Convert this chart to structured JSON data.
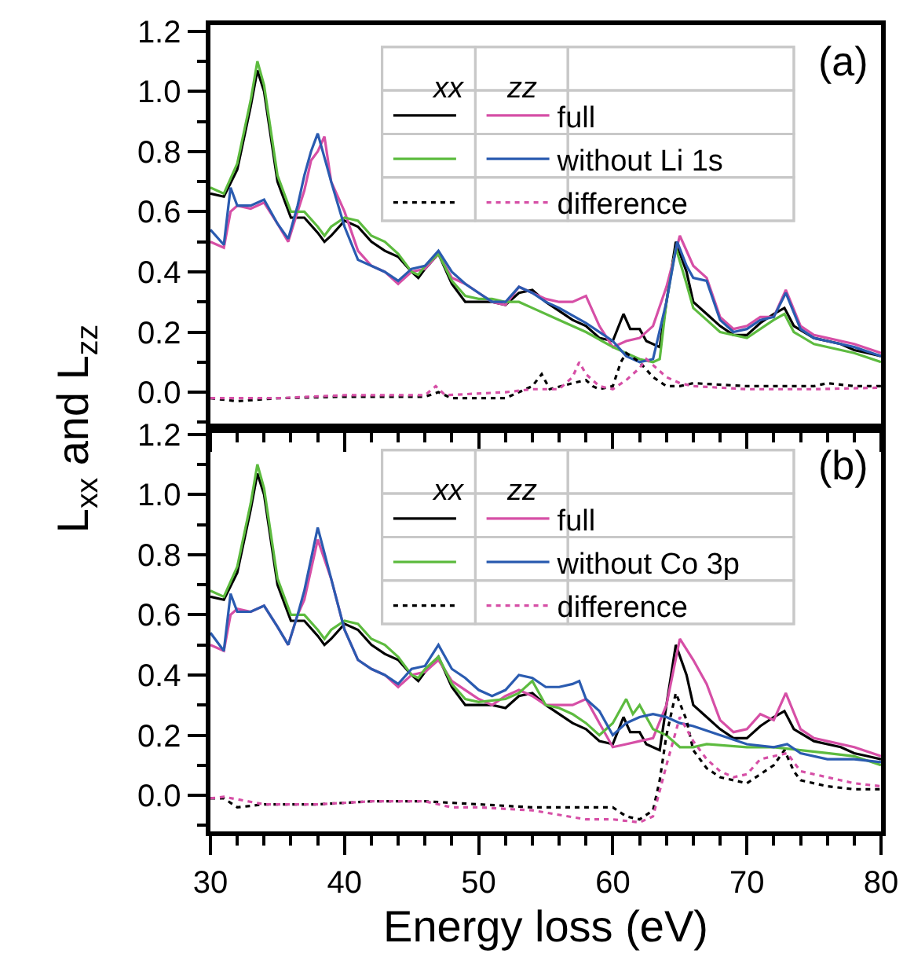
{
  "chart_data": [
    {
      "type": "line",
      "title": "(a)",
      "ylabel": "L$_{xx}$ and L$_{zz}$",
      "tick_labels": "y",
      "legend": "top right",
      "grid": false,
      "marker": "none",
      "annotations": [
        "xx",
        "zz"
      ],
      "xlim": [
        30,
        80
      ],
      "xticks": [
        30,
        40,
        50,
        60,
        70,
        80,
        {
          "value": 32,
          "label": null
        },
        {
          "value": 34,
          "label": null
        },
        {
          "value": 36,
          "label": null
        },
        {
          "value": 38,
          "label": null
        },
        {
          "value": 42,
          "label": null
        },
        {
          "value": 44,
          "label": null
        },
        {
          "value": 46,
          "label": null
        },
        {
          "value": 48,
          "label": null
        },
        {
          "value": 52,
          "label": null
        },
        {
          "value": 54,
          "label": null
        },
        {
          "value": 56,
          "label": null
        },
        {
          "value": 58,
          "label": null
        },
        {
          "value": 62,
          "label": null
        },
        {
          "value": 64,
          "label": null
        },
        {
          "value": 66,
          "label": null
        },
        {
          "value": 68,
          "label": null
        },
        {
          "value": 72,
          "label": null
        },
        {
          "value": 74,
          "label": null
        },
        {
          "value": 76,
          "label": null
        },
        {
          "value": 78,
          "label": null
        }
      ],
      "ylim": [
        -0.12,
        1.22
      ],
      "yticks": [
        {
          "value": 0,
          "label": "0.0"
        },
        0.2,
        0.4,
        0.6,
        0.8,
        {
          "value": 1,
          "label": "1.0"
        },
        1.2,
        {
          "value": -0.1,
          "label": null
        },
        {
          "value": 0.1,
          "label": null
        },
        {
          "value": 0.3,
          "label": null
        },
        {
          "value": 0.5,
          "label": null
        },
        {
          "value": 0.7,
          "label": null
        },
        {
          "value": 0.9,
          "label": null
        },
        {
          "value": 1.1,
          "label": null
        }
      ],
      "series": [
        {
          "color": "#000000",
          "line_style": "solid",
          "x": [
            30,
            31,
            32,
            33,
            33.5,
            34,
            35,
            36,
            37,
            38,
            38.5,
            39,
            40,
            41,
            42,
            43,
            44,
            45,
            45.5,
            46,
            47,
            48,
            49,
            50,
            51,
            52,
            53,
            54,
            55,
            56,
            57,
            58,
            59,
            60,
            60.8,
            61.3,
            62,
            62.5,
            63.5,
            64,
            64.7,
            65.5,
            66,
            67,
            68,
            69,
            70,
            71,
            72,
            72.8,
            73.5,
            75,
            76,
            77,
            78,
            79,
            80
          ],
          "values": [
            0.66,
            0.65,
            0.74,
            0.95,
            1.07,
            1.0,
            0.7,
            0.58,
            0.58,
            0.53,
            0.5,
            0.52,
            0.57,
            0.55,
            0.5,
            0.47,
            0.45,
            0.4,
            0.38,
            0.41,
            0.46,
            0.36,
            0.3,
            0.3,
            0.3,
            0.29,
            0.33,
            0.34,
            0.3,
            0.27,
            0.24,
            0.22,
            0.18,
            0.17,
            0.26,
            0.21,
            0.21,
            0.17,
            0.15,
            0.3,
            0.5,
            0.4,
            0.3,
            0.26,
            0.22,
            0.19,
            0.19,
            0.23,
            0.26,
            0.28,
            0.22,
            0.18,
            0.17,
            0.16,
            0.14,
            0.13,
            0.12
          ]
        },
        {
          "name": "full",
          "color": "#d64fa6",
          "line_style": "solid",
          "x": [
            30,
            31,
            31.5,
            32,
            33,
            34,
            35,
            35.8,
            36.5,
            37,
            37.5,
            38,
            38.5,
            39,
            40,
            41,
            42,
            43,
            44,
            45,
            46,
            47,
            48,
            49,
            50,
            51,
            52,
            53,
            54,
            55,
            56,
            57,
            58,
            59,
            60,
            61,
            62,
            63,
            64,
            65,
            66,
            67,
            68,
            69,
            70,
            71,
            72,
            72.9,
            74,
            75,
            76,
            78,
            80
          ],
          "values": [
            0.5,
            0.48,
            0.6,
            0.62,
            0.61,
            0.63,
            0.56,
            0.5,
            0.6,
            0.67,
            0.77,
            0.8,
            0.85,
            0.7,
            0.6,
            0.47,
            0.42,
            0.4,
            0.36,
            0.4,
            0.41,
            0.46,
            0.38,
            0.36,
            0.33,
            0.3,
            0.29,
            0.35,
            0.33,
            0.31,
            0.3,
            0.3,
            0.32,
            0.22,
            0.15,
            0.17,
            0.18,
            0.22,
            0.35,
            0.52,
            0.42,
            0.38,
            0.25,
            0.21,
            0.22,
            0.25,
            0.25,
            0.34,
            0.22,
            0.19,
            0.18,
            0.16,
            0.13
          ]
        },
        {
          "color": "#5dbb3f",
          "line_style": "solid",
          "x": [
            30,
            31,
            32,
            33,
            33.5,
            34,
            35,
            36,
            37,
            38,
            38.5,
            39,
            40,
            41,
            42,
            43,
            44,
            45,
            45.5,
            46,
            47,
            48,
            49,
            50,
            51,
            52,
            53,
            54,
            56,
            58,
            60,
            62,
            63,
            63.5,
            64,
            64.7,
            65.5,
            66,
            67,
            68,
            70,
            72,
            72.8,
            73.5,
            75,
            78,
            80
          ],
          "values": [
            0.68,
            0.66,
            0.76,
            0.97,
            1.1,
            1.02,
            0.72,
            0.6,
            0.6,
            0.55,
            0.52,
            0.55,
            0.58,
            0.57,
            0.52,
            0.5,
            0.46,
            0.4,
            0.39,
            0.42,
            0.46,
            0.37,
            0.32,
            0.31,
            0.31,
            0.3,
            0.3,
            0.28,
            0.24,
            0.2,
            0.15,
            0.11,
            0.1,
            0.11,
            0.3,
            0.48,
            0.36,
            0.28,
            0.24,
            0.2,
            0.18,
            0.24,
            0.26,
            0.2,
            0.16,
            0.13,
            0.1
          ]
        },
        {
          "name": "without Li 1s",
          "color": "#2a5bb0",
          "line_style": "solid",
          "x": [
            30,
            31,
            31.5,
            32,
            33,
            34,
            35,
            35.8,
            36.5,
            37,
            37.5,
            38,
            38.5,
            39,
            40,
            41,
            42,
            43,
            44,
            45,
            46,
            47,
            48,
            49,
            50,
            51,
            52,
            53,
            54,
            55,
            56,
            58,
            60,
            61,
            62,
            63,
            64,
            64.8,
            65.5,
            66,
            67,
            68,
            69,
            70,
            71,
            72,
            72.9,
            74,
            75,
            76,
            78,
            80
          ],
          "values": [
            0.54,
            0.49,
            0.68,
            0.62,
            0.62,
            0.64,
            0.56,
            0.51,
            0.62,
            0.72,
            0.8,
            0.86,
            0.78,
            0.7,
            0.55,
            0.44,
            0.42,
            0.4,
            0.37,
            0.41,
            0.42,
            0.47,
            0.4,
            0.36,
            0.33,
            0.3,
            0.3,
            0.35,
            0.33,
            0.3,
            0.28,
            0.23,
            0.17,
            0.12,
            0.1,
            0.11,
            0.3,
            0.5,
            0.42,
            0.38,
            0.37,
            0.24,
            0.2,
            0.21,
            0.24,
            0.25,
            0.33,
            0.21,
            0.18,
            0.17,
            0.15,
            0.12
          ]
        },
        {
          "color": "#000000",
          "line_style": "dotted",
          "x": [
            30,
            32,
            35,
            40,
            46,
            47,
            48,
            52,
            53,
            54,
            54.7,
            55.3,
            57,
            58,
            58.5,
            59,
            60,
            60.6,
            61,
            62,
            63,
            64,
            65,
            66,
            70,
            75,
            76,
            78,
            80
          ],
          "values": [
            -0.02,
            -0.03,
            -0.02,
            -0.015,
            -0.015,
            0.0,
            -0.02,
            -0.02,
            0.0,
            0.02,
            0.06,
            0.01,
            0.03,
            0.04,
            0.02,
            0.01,
            0.02,
            0.1,
            0.13,
            0.1,
            0.05,
            0.02,
            0.02,
            0.03,
            0.02,
            0.02,
            0.03,
            0.02,
            0.02
          ]
        },
        {
          "name": "difference",
          "color": "#d64fa6",
          "line_style": "dotted",
          "x": [
            30,
            35,
            40,
            46,
            46.8,
            47.5,
            52,
            54,
            56,
            57,
            57.5,
            58,
            59,
            60,
            61,
            62,
            62.5,
            63,
            64,
            65,
            66,
            70,
            75,
            80
          ],
          "values": [
            -0.02,
            -0.02,
            -0.01,
            -0.01,
            0.02,
            -0.01,
            0.0,
            0.01,
            0.01,
            0.05,
            0.1,
            0.06,
            0.02,
            0.01,
            0.04,
            0.08,
            0.11,
            0.09,
            0.05,
            0.03,
            0.02,
            0.01,
            0.01,
            0.015
          ]
        }
      ]
    },
    {
      "type": "line",
      "title": "(b)",
      "xlabel": "Energy loss (eV)",
      "legend": "top right",
      "grid": false,
      "marker": "none",
      "annotations": [
        "xx",
        "zz"
      ],
      "xlim": [
        30,
        80
      ],
      "xticks": [
        30,
        40,
        50,
        60,
        70,
        80,
        {
          "value": 32,
          "label": null
        },
        {
          "value": 34,
          "label": null
        },
        {
          "value": 36,
          "label": null
        },
        {
          "value": 38,
          "label": null
        },
        {
          "value": 42,
          "label": null
        },
        {
          "value": 44,
          "label": null
        },
        {
          "value": 46,
          "label": null
        },
        {
          "value": 48,
          "label": null
        },
        {
          "value": 52,
          "label": null
        },
        {
          "value": 54,
          "label": null
        },
        {
          "value": 56,
          "label": null
        },
        {
          "value": 58,
          "label": null
        },
        {
          "value": 62,
          "label": null
        },
        {
          "value": 64,
          "label": null
        },
        {
          "value": 66,
          "label": null
        },
        {
          "value": 68,
          "label": null
        },
        {
          "value": 72,
          "label": null
        },
        {
          "value": 74,
          "label": null
        },
        {
          "value": 76,
          "label": null
        },
        {
          "value": 78,
          "label": null
        }
      ],
      "ylim": [
        -0.12,
        1.22
      ],
      "yticks": [
        {
          "value": 0,
          "label": "0.0"
        },
        0.2,
        0.4,
        0.6,
        0.8,
        {
          "value": 1,
          "label": "1.0"
        },
        1.2,
        {
          "value": -0.1,
          "label": null
        },
        {
          "value": 0.1,
          "label": null
        },
        {
          "value": 0.3,
          "label": null
        },
        {
          "value": 0.5,
          "label": null
        },
        {
          "value": 0.7,
          "label": null
        },
        {
          "value": 0.9,
          "label": null
        },
        {
          "value": 1.1,
          "label": null
        }
      ],
      "series": [
        {
          "color": "#000000",
          "line_style": "solid",
          "x": [
            30,
            31,
            32,
            33,
            33.5,
            34,
            35,
            36,
            37,
            38,
            38.5,
            39,
            40,
            41,
            42,
            43,
            44,
            45,
            45.5,
            46,
            47,
            48,
            49,
            50,
            51,
            52,
            53,
            54,
            55,
            56,
            57,
            58,
            59,
            60,
            60.8,
            61.3,
            62,
            62.5,
            63.5,
            64,
            64.7,
            65.5,
            66,
            67,
            68,
            69,
            70,
            71,
            72,
            72.8,
            73.5,
            75,
            76,
            77,
            78,
            79,
            80
          ],
          "values": [
            0.66,
            0.65,
            0.74,
            0.95,
            1.07,
            1.0,
            0.7,
            0.58,
            0.58,
            0.53,
            0.5,
            0.52,
            0.57,
            0.55,
            0.5,
            0.47,
            0.45,
            0.4,
            0.38,
            0.41,
            0.46,
            0.36,
            0.3,
            0.3,
            0.3,
            0.29,
            0.33,
            0.34,
            0.3,
            0.27,
            0.24,
            0.22,
            0.18,
            0.17,
            0.26,
            0.21,
            0.21,
            0.17,
            0.15,
            0.3,
            0.5,
            0.4,
            0.3,
            0.26,
            0.22,
            0.19,
            0.19,
            0.23,
            0.26,
            0.28,
            0.22,
            0.18,
            0.17,
            0.16,
            0.14,
            0.13,
            0.12
          ]
        },
        {
          "name": "full",
          "color": "#d64fa6",
          "line_style": "solid",
          "x": [
            30,
            31,
            31.5,
            32,
            33,
            34,
            35,
            35.8,
            36.5,
            37,
            38,
            39,
            40,
            41,
            42,
            43,
            44,
            45,
            46,
            47,
            48,
            49,
            50,
            51,
            52,
            53,
            54,
            55,
            56,
            57,
            58,
            59,
            60,
            61,
            62,
            63,
            64,
            65,
            66,
            67,
            68,
            69,
            70,
            71,
            72,
            72.9,
            74,
            75,
            76,
            78,
            80
          ],
          "values": [
            0.5,
            0.48,
            0.6,
            0.62,
            0.61,
            0.63,
            0.56,
            0.5,
            0.6,
            0.65,
            0.85,
            0.72,
            0.55,
            0.45,
            0.42,
            0.4,
            0.36,
            0.4,
            0.41,
            0.45,
            0.38,
            0.35,
            0.32,
            0.3,
            0.33,
            0.35,
            0.33,
            0.3,
            0.3,
            0.3,
            0.32,
            0.24,
            0.16,
            0.17,
            0.18,
            0.19,
            0.3,
            0.52,
            0.45,
            0.37,
            0.25,
            0.21,
            0.22,
            0.27,
            0.25,
            0.34,
            0.22,
            0.19,
            0.18,
            0.16,
            0.13
          ]
        },
        {
          "color": "#5dbb3f",
          "line_style": "solid",
          "x": [
            30,
            31,
            32,
            33,
            33.5,
            34,
            35,
            36,
            37,
            38,
            38.5,
            39,
            40,
            41,
            42,
            43,
            44,
            45,
            45.5,
            46,
            47,
            48,
            49,
            50,
            52,
            53,
            54,
            55,
            56,
            57,
            58,
            59,
            60,
            61,
            61.5,
            62,
            63,
            64,
            65,
            66,
            67,
            70,
            72,
            74,
            76,
            78,
            80
          ],
          "values": [
            0.68,
            0.66,
            0.76,
            0.97,
            1.1,
            1.02,
            0.72,
            0.6,
            0.6,
            0.55,
            0.52,
            0.55,
            0.58,
            0.57,
            0.52,
            0.5,
            0.46,
            0.4,
            0.39,
            0.42,
            0.46,
            0.37,
            0.32,
            0.31,
            0.32,
            0.34,
            0.38,
            0.3,
            0.29,
            0.27,
            0.24,
            0.2,
            0.24,
            0.32,
            0.27,
            0.3,
            0.22,
            0.2,
            0.16,
            0.16,
            0.17,
            0.16,
            0.16,
            0.15,
            0.14,
            0.13,
            0.1
          ]
        },
        {
          "name": "without Co 3p",
          "color": "#2a5bb0",
          "line_style": "solid",
          "x": [
            30,
            31,
            31.5,
            32,
            33,
            34,
            35,
            35.8,
            36.5,
            37,
            38,
            39,
            40,
            41,
            42,
            43,
            44,
            45,
            46,
            47,
            48,
            49,
            50,
            51,
            52,
            53,
            54,
            55,
            56,
            57,
            57.5,
            58,
            59,
            60,
            61,
            62,
            63,
            64,
            65,
            66,
            68,
            70,
            72,
            73,
            74,
            76,
            78,
            80
          ],
          "values": [
            0.54,
            0.48,
            0.67,
            0.61,
            0.61,
            0.63,
            0.56,
            0.5,
            0.6,
            0.68,
            0.89,
            0.72,
            0.55,
            0.45,
            0.42,
            0.4,
            0.37,
            0.42,
            0.43,
            0.5,
            0.42,
            0.39,
            0.35,
            0.33,
            0.35,
            0.4,
            0.39,
            0.36,
            0.36,
            0.37,
            0.38,
            0.32,
            0.28,
            0.2,
            0.24,
            0.26,
            0.27,
            0.26,
            0.24,
            0.23,
            0.2,
            0.17,
            0.16,
            0.17,
            0.14,
            0.12,
            0.12,
            0.11
          ]
        },
        {
          "color": "#000000",
          "line_style": "dotted",
          "x": [
            30,
            31,
            32,
            34,
            38,
            42,
            46,
            50,
            54,
            58,
            60,
            61,
            62,
            63,
            63.5,
            64,
            64.7,
            65.5,
            66,
            67,
            68,
            69,
            70,
            71,
            72,
            72.8,
            73.5,
            74,
            76,
            78,
            80
          ],
          "values": [
            -0.01,
            -0.01,
            -0.04,
            -0.03,
            -0.03,
            -0.02,
            -0.02,
            -0.03,
            -0.04,
            -0.04,
            -0.04,
            -0.07,
            -0.08,
            -0.05,
            0.05,
            0.2,
            0.34,
            0.25,
            0.15,
            0.09,
            0.06,
            0.05,
            0.04,
            0.07,
            0.1,
            0.15,
            0.08,
            0.05,
            0.03,
            0.02,
            0.02
          ]
        },
        {
          "name": "difference",
          "color": "#d64fa6",
          "line_style": "dotted",
          "x": [
            30,
            31,
            34,
            38,
            42,
            46,
            48,
            50,
            54,
            58,
            60,
            62,
            63,
            64,
            65,
            66,
            67,
            68,
            69,
            70,
            71,
            72,
            73,
            74,
            76,
            78,
            80
          ],
          "values": [
            -0.01,
            -0.005,
            -0.03,
            -0.03,
            -0.02,
            -0.02,
            -0.04,
            -0.04,
            -0.05,
            -0.08,
            -0.08,
            -0.09,
            -0.07,
            0.1,
            0.26,
            0.18,
            0.12,
            0.08,
            0.06,
            0.07,
            0.12,
            0.13,
            0.14,
            0.08,
            0.06,
            0.04,
            0.03
          ]
        }
      ]
    }
  ]
}
